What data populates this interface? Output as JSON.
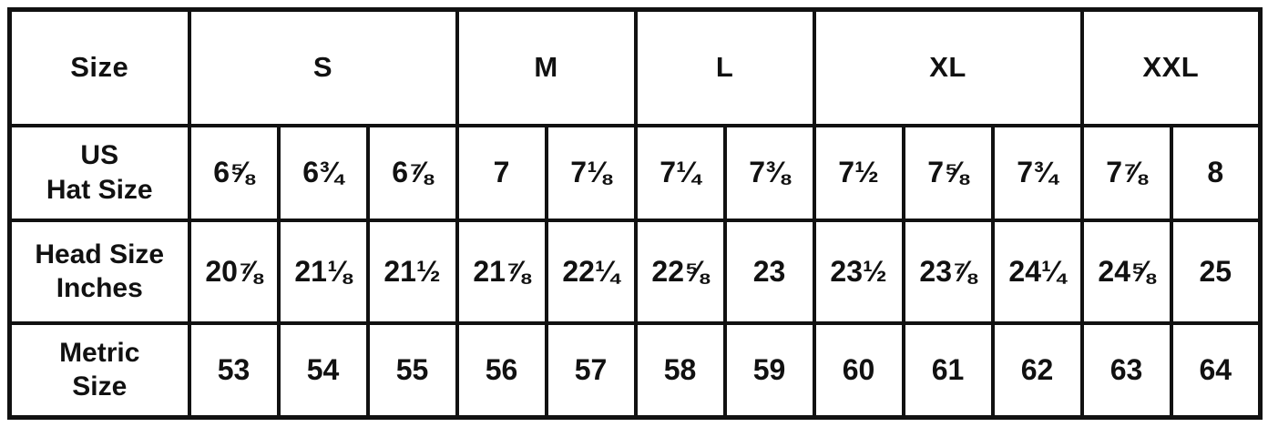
{
  "chart_data": {
    "type": "table",
    "corner_label": "Size",
    "size_groups": [
      {
        "label": "S",
        "span": 3
      },
      {
        "label": "M",
        "span": 2
      },
      {
        "label": "L",
        "span": 2
      },
      {
        "label": "XL",
        "span": 3
      },
      {
        "label": "XXL",
        "span": 2
      }
    ],
    "rows": [
      {
        "label_line1": "US",
        "label_line2": "Hat Size",
        "label_full": "US Hat Size",
        "values": [
          "6⅝",
          "6¾",
          "6⅞",
          "7",
          "7⅛",
          "7¼",
          "7⅜",
          "7½",
          "7⅝",
          "7¾",
          "7⅞",
          "8"
        ]
      },
      {
        "label_line1": "Head Size",
        "label_line2": "Inches",
        "label_full": "Head Size Inches",
        "values": [
          "20⅞",
          "21⅛",
          "21½",
          "21⅞",
          "22¼",
          "22⅝",
          "23",
          "23½",
          "23⅞",
          "24¼",
          "24⅝",
          "25"
        ]
      },
      {
        "label_line1": "Metric",
        "label_line2": "Size",
        "label_full": "Metric Size",
        "values": [
          "53",
          "54",
          "55",
          "56",
          "57",
          "58",
          "59",
          "60",
          "61",
          "62",
          "63",
          "64"
        ]
      }
    ]
  },
  "colors": {
    "border": "#111111",
    "text": "#111111",
    "background": "#ffffff"
  }
}
